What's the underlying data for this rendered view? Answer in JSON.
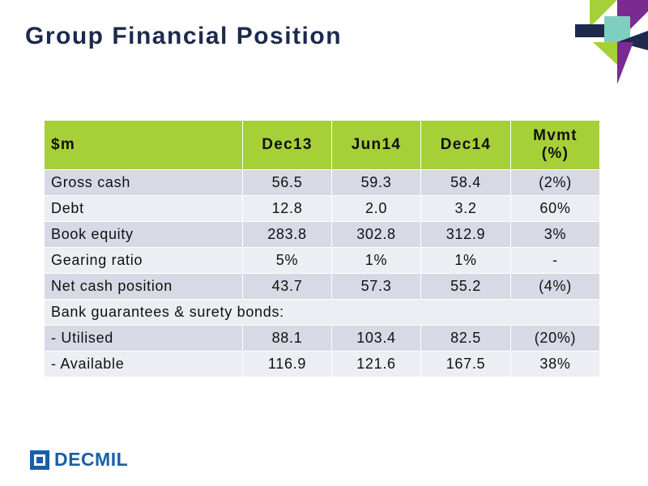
{
  "title": "Group Financial Position",
  "table": {
    "headers": [
      "$m",
      "Dec13",
      "Jun14",
      "Dec14"
    ],
    "mvmt_line1": "Mvmt",
    "mvmt_line2": "(%)",
    "rows": [
      [
        "Gross cash",
        "56.5",
        "59.3",
        "58.4",
        "(2%)"
      ],
      [
        "Debt",
        "12.8",
        "2.0",
        "3.2",
        "60%"
      ],
      [
        "Book equity",
        "283.8",
        "302.8",
        "312.9",
        "3%"
      ],
      [
        "Gearing ratio",
        "5%",
        "1%",
        "1%",
        "-"
      ],
      [
        "Net cash position",
        "43.7",
        "57.3",
        "55.2",
        "(4%)"
      ]
    ],
    "section_label": "Bank guarantees & surety bonds:",
    "sub_rows": [
      [
        "- Utilised",
        "88.1",
        "103.4",
        "82.5",
        "(20%)"
      ],
      [
        "- Available",
        "116.9",
        "121.6",
        "167.5",
        "38%"
      ]
    ]
  },
  "brand": {
    "name": "DECMIL",
    "colors": {
      "green": "#a6d038",
      "navy": "#1d2a4d",
      "purple": "#7b2a8f",
      "teal": "#7fcfc0",
      "blue": "#1a5fa6"
    }
  },
  "icons": {
    "corner_logo": "decmil-arrow-mark-icon",
    "footer_logo": "decmil-square-icon"
  }
}
